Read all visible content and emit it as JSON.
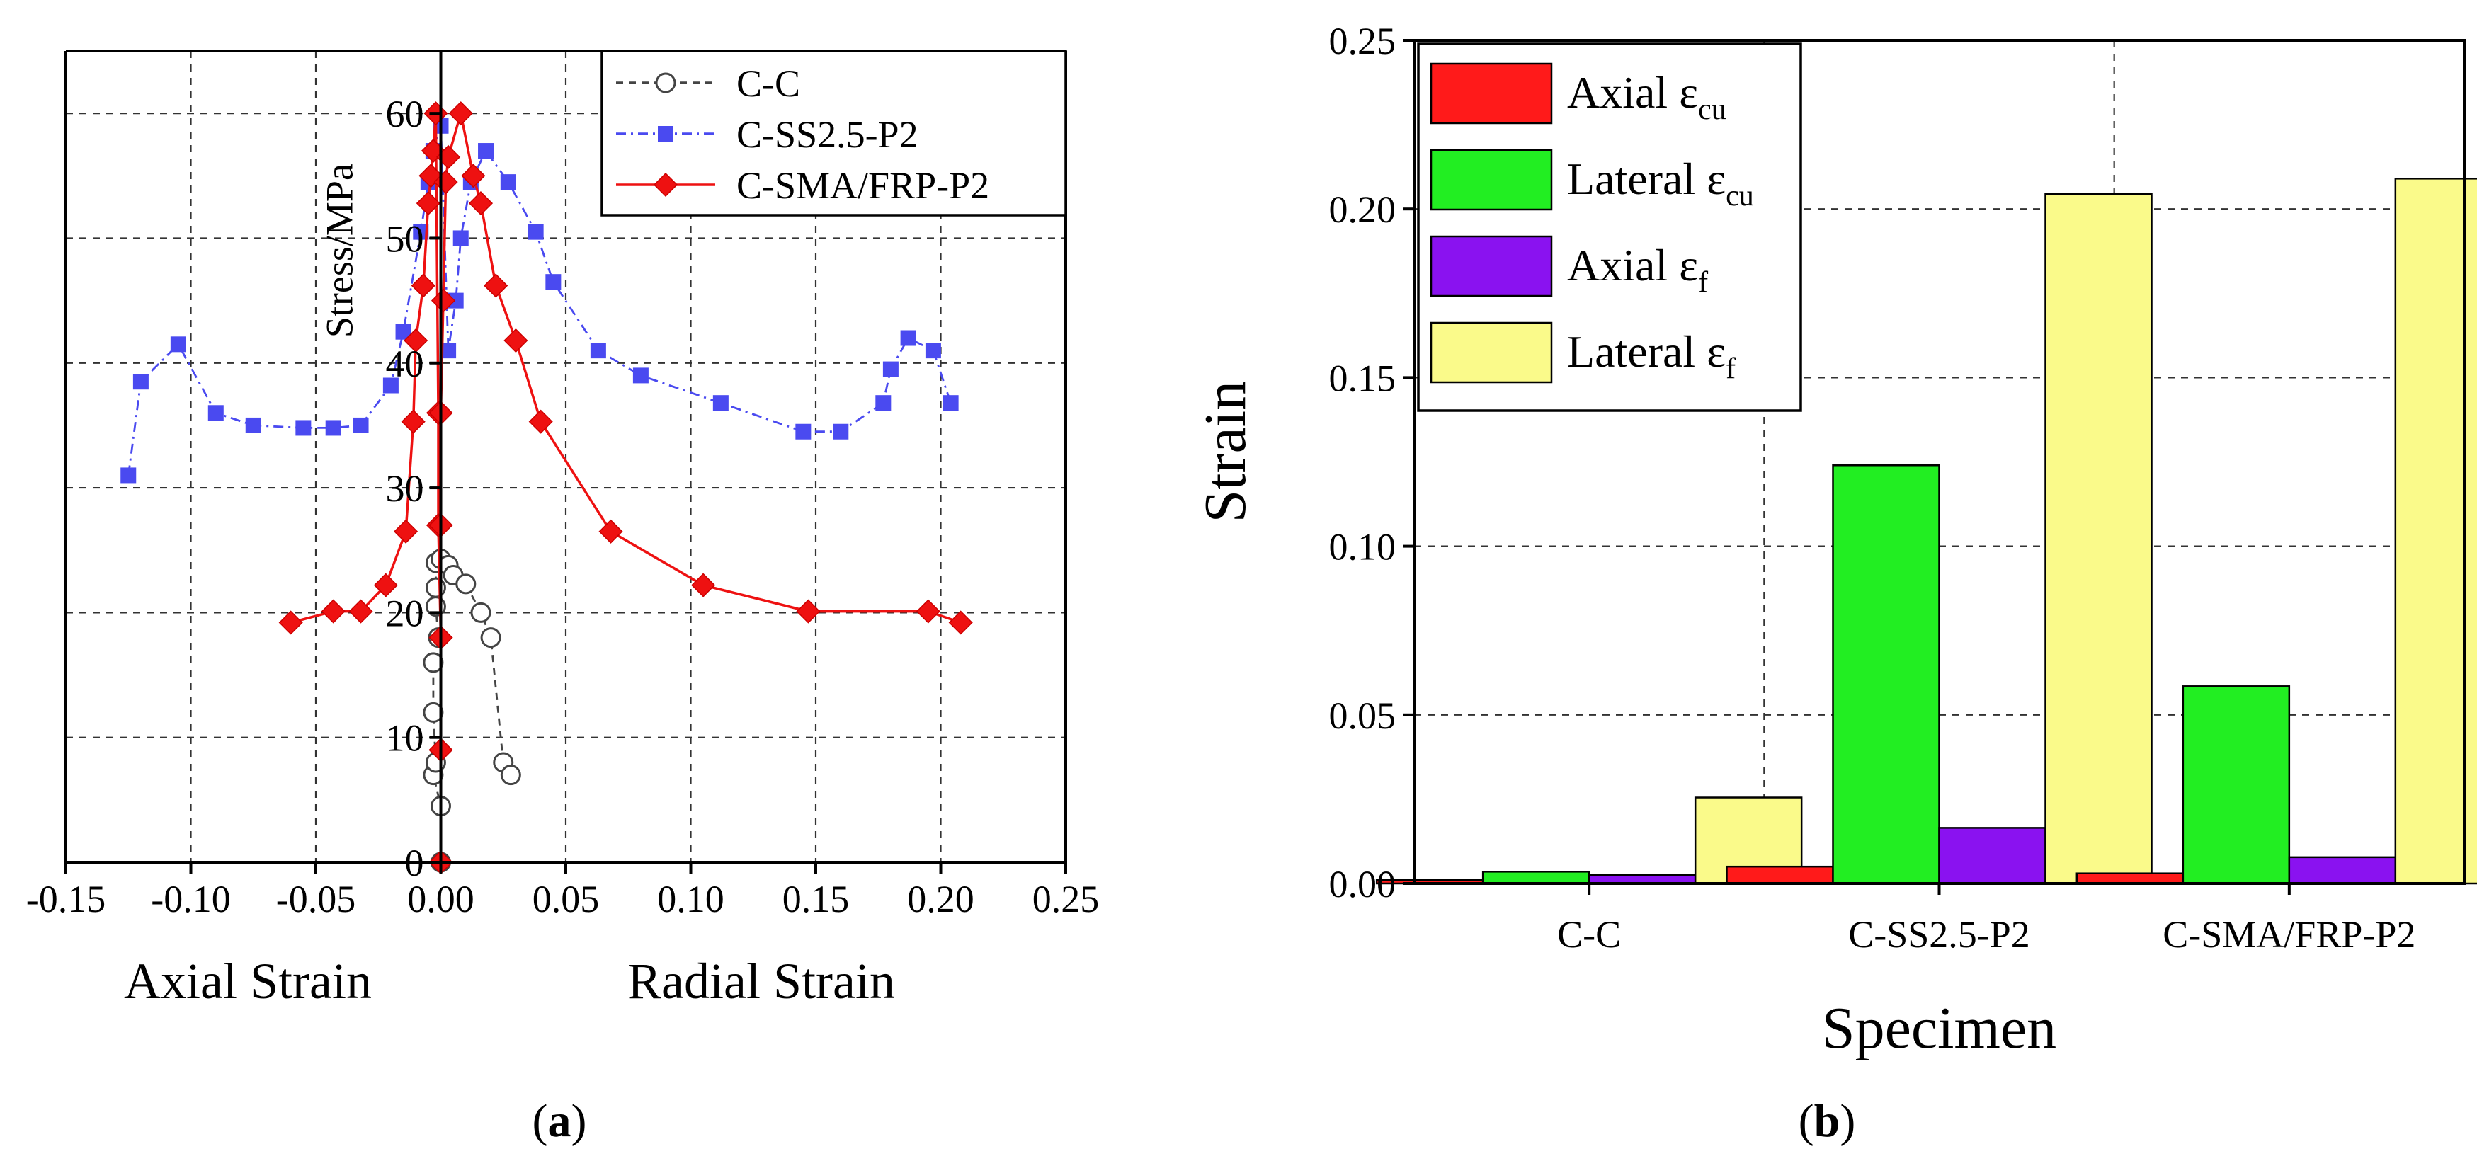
{
  "chart_data": [
    {
      "panel": "a",
      "type": "scatter",
      "title": "",
      "xlabel_left": "Axial Strain",
      "xlabel_right": "Radial Strain",
      "ylabel": "Stress/MPa",
      "xlim": [
        -0.15,
        0.25
      ],
      "ylim": [
        0,
        65
      ],
      "xticks": [
        "-0.15",
        "-0.10",
        "-0.05",
        "0.00",
        "0.05",
        "0.10",
        "0.15",
        "0.20",
        "0.25"
      ],
      "xtick_values": [
        -0.15,
        -0.1,
        -0.05,
        0.0,
        0.05,
        0.1,
        0.15,
        0.2,
        0.25
      ],
      "yticks": [
        "0",
        "10",
        "20",
        "30",
        "40",
        "50",
        "60"
      ],
      "ytick_values": [
        0,
        10,
        20,
        30,
        40,
        50,
        60
      ],
      "grid": true,
      "legend_position": "top-right",
      "caption": "(a)",
      "series": [
        {
          "name": "C-C",
          "color": "#444444",
          "marker": "circle",
          "line": "dashed",
          "points": [
            [
              0.0,
              0
            ],
            [
              0.0,
              4.5
            ],
            [
              -0.003,
              7
            ],
            [
              -0.002,
              8
            ],
            [
              -0.003,
              12
            ],
            [
              -0.003,
              16
            ],
            [
              -0.001,
              18
            ],
            [
              -0.002,
              20.5
            ],
            [
              -0.002,
              22
            ],
            [
              -0.002,
              24
            ],
            [
              0.0,
              24.3
            ],
            [
              0.003,
              23.8
            ],
            [
              0.005,
              23
            ],
            [
              0.01,
              22.3
            ],
            [
              0.016,
              20
            ],
            [
              0.02,
              18
            ],
            [
              0.025,
              8
            ],
            [
              0.028,
              7
            ]
          ]
        },
        {
          "name": "C-SS2.5-P2",
          "color": "#4a4af0",
          "marker": "square",
          "line": "dashdot",
          "points": [
            [
              -0.125,
              31
            ],
            [
              -0.12,
              38.5
            ],
            [
              -0.105,
              41.5
            ],
            [
              -0.09,
              36
            ],
            [
              -0.075,
              35
            ],
            [
              -0.055,
              34.8
            ],
            [
              -0.043,
              34.8
            ],
            [
              -0.032,
              35
            ],
            [
              -0.02,
              38.2
            ],
            [
              -0.015,
              42.5
            ],
            [
              -0.008,
              50.5
            ],
            [
              -0.005,
              54.5
            ],
            [
              -0.003,
              57
            ],
            [
              0.0,
              59
            ],
            [
              0.003,
              41
            ],
            [
              0.006,
              45
            ],
            [
              0.008,
              50
            ],
            [
              0.012,
              54.5
            ],
            [
              0.018,
              57
            ],
            [
              0.027,
              54.5
            ],
            [
              0.038,
              50.5
            ],
            [
              0.045,
              46.5
            ],
            [
              0.063,
              41
            ],
            [
              0.08,
              39
            ],
            [
              0.112,
              36.8
            ],
            [
              0.145,
              34.5
            ],
            [
              0.16,
              34.5
            ],
            [
              0.177,
              36.8
            ],
            [
              0.18,
              39.5
            ],
            [
              0.187,
              42
            ],
            [
              0.197,
              41
            ],
            [
              0.204,
              36.8
            ]
          ]
        },
        {
          "name": "C-SMA/FRP-P2",
          "color": "#ee1111",
          "marker": "diamond",
          "line": "solid",
          "points": [
            [
              -0.06,
              19.2
            ],
            [
              -0.043,
              20.1
            ],
            [
              -0.032,
              20.1
            ],
            [
              -0.022,
              22.2
            ],
            [
              -0.014,
              26.5
            ],
            [
              -0.011,
              35.3
            ],
            [
              -0.01,
              41.8
            ],
            [
              -0.007,
              46.2
            ],
            [
              -0.005,
              52.8
            ],
            [
              -0.004,
              55
            ],
            [
              -0.003,
              57
            ],
            [
              -0.002,
              60
            ],
            [
              -0.001,
              36
            ],
            [
              -0.001,
              27
            ],
            [
              0.0,
              18
            ],
            [
              0.0,
              9
            ],
            [
              0.0,
              0
            ],
            [
              0.0,
              9
            ],
            [
              0.0,
              18
            ],
            [
              0.0,
              27
            ],
            [
              0.0,
              36
            ],
            [
              0.001,
              45
            ],
            [
              0.002,
              54.5
            ],
            [
              0.003,
              56.5
            ],
            [
              0.008,
              60
            ],
            [
              0.013,
              55
            ],
            [
              0.016,
              52.8
            ],
            [
              0.022,
              46.2
            ],
            [
              0.03,
              41.8
            ],
            [
              0.04,
              35.3
            ],
            [
              0.068,
              26.5
            ],
            [
              0.105,
              22.2
            ],
            [
              0.147,
              20.1
            ],
            [
              0.195,
              20.1
            ],
            [
              0.208,
              19.2
            ]
          ]
        }
      ]
    },
    {
      "panel": "b",
      "type": "bar",
      "title": "",
      "xlabel": "Specimen",
      "ylabel": "Strain",
      "ylim": [
        0,
        0.25
      ],
      "yticks": [
        "0.00",
        "0.05",
        "0.10",
        "0.15",
        "0.20",
        "0.25"
      ],
      "ytick_values": [
        0,
        0.05,
        0.1,
        0.15,
        0.2,
        0.25
      ],
      "categories": [
        "C-C",
        "C-SS2.5-P2",
        "C-SMA/FRP-P2"
      ],
      "grid": true,
      "legend_position": "top-left",
      "caption": "(b)",
      "series": [
        {
          "name": "Axial",
          "sub": "cu",
          "color": "#ff1a1a",
          "values": [
            0.001,
            0.005,
            0.003
          ]
        },
        {
          "name": "Lateral",
          "sub": "cu",
          "color": "#22ee22",
          "values": [
            0.0035,
            0.124,
            0.0585
          ]
        },
        {
          "name": "Axial",
          "sub": "f",
          "color": "#8a12f0",
          "values": [
            0.0025,
            0.0165,
            0.0078
          ]
        },
        {
          "name": "Lateral",
          "sub": "f",
          "color": "#fafa8a",
          "values": [
            0.0255,
            0.2045,
            0.209
          ]
        }
      ],
      "legend_symbol": "ε"
    }
  ]
}
